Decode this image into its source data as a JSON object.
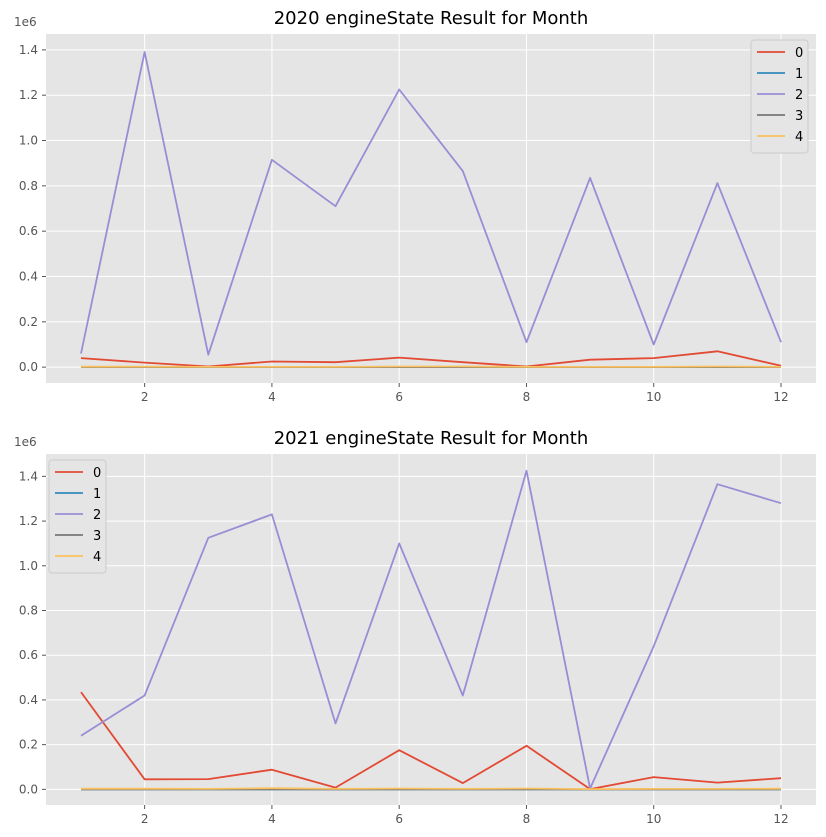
{
  "chart_data": [
    {
      "type": "line",
      "title": "2020 engineState Result for Month",
      "offset_label": "1e6",
      "x": [
        1,
        2,
        3,
        4,
        5,
        6,
        7,
        8,
        9,
        10,
        11,
        12
      ],
      "xticks": [
        2,
        4,
        6,
        8,
        10,
        12
      ],
      "xlim": [
        0.45,
        12.55
      ],
      "ylim": [
        -0.07,
        1.47
      ],
      "yticks": [
        0.0,
        0.2,
        0.4,
        0.6,
        0.8,
        1.0,
        1.2,
        1.4
      ],
      "grid": true,
      "legend_position": "upper right",
      "series": [
        {
          "name": "0",
          "color": "#E24A33",
          "values": [
            0.04,
            0.02,
            0.003,
            0.025,
            0.022,
            0.042,
            0.022,
            0.003,
            0.033,
            0.04,
            0.07,
            0.006
          ]
        },
        {
          "name": "1",
          "color": "#348ABD",
          "values": [
            0,
            0,
            0,
            0,
            0,
            0,
            0,
            0,
            0,
            0,
            0,
            0
          ]
        },
        {
          "name": "2",
          "color": "#988ED5",
          "values": [
            0.06,
            1.39,
            0.055,
            0.915,
            0.71,
            1.225,
            0.865,
            0.11,
            0.835,
            0.1,
            0.812,
            0.11
          ]
        },
        {
          "name": "3",
          "color": "#777777",
          "values": [
            0,
            0,
            0,
            0,
            0,
            0,
            0,
            0,
            0,
            0,
            0,
            0
          ]
        },
        {
          "name": "4",
          "color": "#FBC15E",
          "values": [
            0.002,
            0.002,
            0.001,
            0.001,
            0.001,
            0.003,
            0.003,
            0.001,
            0.001,
            0.001,
            0.003,
            0.001
          ]
        }
      ]
    },
    {
      "type": "line",
      "title": "2021 engineState Result for Month",
      "offset_label": "1e6",
      "x": [
        1,
        2,
        3,
        4,
        5,
        6,
        7,
        8,
        9,
        10,
        11,
        12
      ],
      "xticks": [
        2,
        4,
        6,
        8,
        10,
        12
      ],
      "xlim": [
        0.45,
        12.55
      ],
      "ylim": [
        -0.07,
        1.5
      ],
      "yticks": [
        0.0,
        0.2,
        0.4,
        0.6,
        0.8,
        1.0,
        1.2,
        1.4
      ],
      "grid": true,
      "legend_position": "upper left",
      "series": [
        {
          "name": "0",
          "color": "#E24A33",
          "values": [
            0.435,
            0.045,
            0.046,
            0.088,
            0.008,
            0.175,
            0.028,
            0.195,
            0.001,
            0.055,
            0.03,
            0.05
          ]
        },
        {
          "name": "1",
          "color": "#348ABD",
          "values": [
            0,
            0,
            0,
            0,
            0,
            0,
            0,
            0,
            0,
            0,
            0,
            0
          ]
        },
        {
          "name": "2",
          "color": "#988ED5",
          "values": [
            0.24,
            0.42,
            1.125,
            1.23,
            0.295,
            1.1,
            0.42,
            1.425,
            0.004,
            0.64,
            1.365,
            1.28
          ]
        },
        {
          "name": "3",
          "color": "#777777",
          "values": [
            0,
            0,
            0,
            0,
            0,
            0,
            0,
            0,
            0,
            0,
            0,
            0
          ]
        },
        {
          "name": "4",
          "color": "#FBC15E",
          "values": [
            0.003,
            0.003,
            0.002,
            0.005,
            0.002,
            0.004,
            0.002,
            0.004,
            0.001,
            0.002,
            0.002,
            0.003
          ]
        }
      ]
    }
  ]
}
